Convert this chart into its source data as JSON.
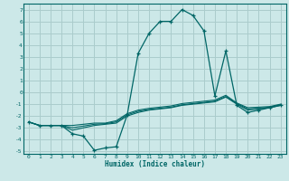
{
  "xlabel": "Humidex (Indice chaleur)",
  "bg_color": "#cce8e8",
  "grid_color": "#aacccc",
  "line_color": "#006666",
  "x_values": [
    0,
    1,
    2,
    3,
    4,
    5,
    6,
    7,
    8,
    9,
    10,
    11,
    12,
    13,
    14,
    15,
    16,
    17,
    18,
    19,
    20,
    21,
    22,
    23
  ],
  "main_line": [
    -2.5,
    -2.8,
    -2.8,
    -2.8,
    -3.5,
    -3.7,
    -4.9,
    -4.7,
    -4.6,
    -1.9,
    3.3,
    5.0,
    6.0,
    6.0,
    7.0,
    6.5,
    5.2,
    -0.3,
    3.5,
    -1.1,
    -1.7,
    -1.5,
    -1.3,
    -1.1
  ],
  "line2": [
    -2.5,
    -2.8,
    -2.8,
    -2.8,
    -3.2,
    -3.0,
    -2.8,
    -2.7,
    -2.6,
    -2.0,
    -1.7,
    -1.5,
    -1.4,
    -1.3,
    -1.1,
    -1.0,
    -0.9,
    -0.8,
    -0.4,
    -1.0,
    -1.5,
    -1.4,
    -1.3,
    -1.1
  ],
  "line3": [
    -2.5,
    -2.8,
    -2.8,
    -2.8,
    -3.0,
    -2.85,
    -2.7,
    -2.65,
    -2.5,
    -1.9,
    -1.6,
    -1.45,
    -1.35,
    -1.25,
    -1.05,
    -0.95,
    -0.85,
    -0.75,
    -0.35,
    -0.95,
    -1.4,
    -1.35,
    -1.25,
    -1.05
  ],
  "line4": [
    -2.5,
    -2.8,
    -2.8,
    -2.8,
    -2.8,
    -2.7,
    -2.6,
    -2.6,
    -2.4,
    -1.8,
    -1.5,
    -1.35,
    -1.25,
    -1.15,
    -0.95,
    -0.85,
    -0.75,
    -0.65,
    -0.25,
    -0.9,
    -1.3,
    -1.25,
    -1.2,
    -1.0
  ],
  "ylim": [
    -5.2,
    7.5
  ],
  "xlim": [
    -0.5,
    23.5
  ],
  "yticks": [
    -5,
    -4,
    -3,
    -2,
    -1,
    0,
    1,
    2,
    3,
    4,
    5,
    6,
    7
  ],
  "xticks": [
    0,
    1,
    2,
    3,
    4,
    5,
    6,
    7,
    8,
    9,
    10,
    11,
    12,
    13,
    14,
    15,
    16,
    17,
    18,
    19,
    20,
    21,
    22,
    23
  ]
}
